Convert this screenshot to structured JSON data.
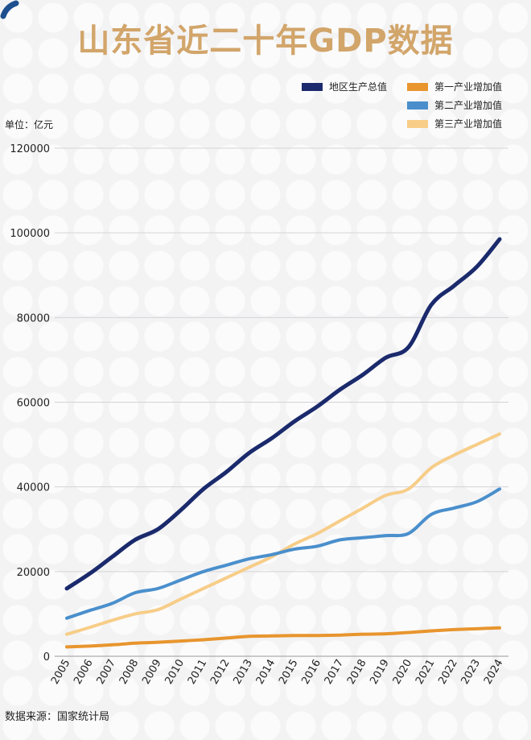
{
  "chart_data": {
    "type": "line",
    "title": "山东省近二十年GDP数据",
    "unit_label": "单位：亿元",
    "source": "数据来源：国家统计局",
    "xlabel": "",
    "ylabel": "",
    "ylim": [
      0,
      120000
    ],
    "yticks": [
      0,
      20000,
      40000,
      60000,
      80000,
      100000,
      120000
    ],
    "grid": true,
    "legend_position": "top-right",
    "x": [
      "2005",
      "2006",
      "2007",
      "2008",
      "2009",
      "2010",
      "2011",
      "2012",
      "2013",
      "2014",
      "2015",
      "2016",
      "2017",
      "2018",
      "2019",
      "2020",
      "2021",
      "2022",
      "2023",
      "2024"
    ],
    "series": [
      {
        "name": "地区生产总值",
        "color": "#1a2a6c",
        "values": [
          16000,
          19500,
          23500,
          27500,
          30000,
          34500,
          39500,
          43500,
          48000,
          51500,
          55500,
          59000,
          63000,
          66500,
          70500,
          73000,
          83000,
          87500,
          92000,
          98500
        ]
      },
      {
        "name": "第一产业增加值",
        "color": "#e8952e",
        "values": [
          2200,
          2400,
          2700,
          3100,
          3300,
          3600,
          3900,
          4300,
          4700,
          4800,
          4900,
          4900,
          5000,
          5200,
          5300,
          5600,
          6000,
          6300,
          6500,
          6700
        ]
      },
      {
        "name": "第二产业增加值",
        "color": "#4a8fcc",
        "values": [
          9000,
          10800,
          12500,
          15000,
          16000,
          18000,
          20000,
          21500,
          23000,
          24000,
          25300,
          26000,
          27500,
          28000,
          28500,
          29000,
          33500,
          35000,
          36500,
          39500
        ]
      },
      {
        "name": "第三产业增加值",
        "color": "#f7cd88",
        "values": [
          5200,
          6800,
          8500,
          10000,
          11000,
          13500,
          16000,
          18500,
          21000,
          23500,
          26500,
          29000,
          32000,
          35000,
          38000,
          39500,
          44500,
          47500,
          50000,
          52500
        ]
      }
    ]
  }
}
